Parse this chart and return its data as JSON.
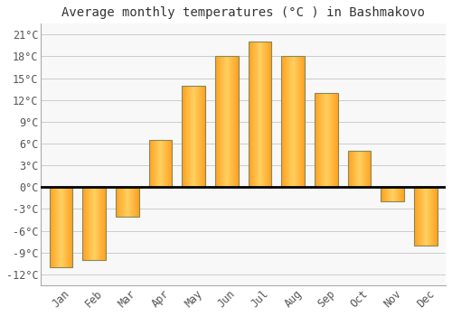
{
  "months": [
    "Jan",
    "Feb",
    "Mar",
    "Apr",
    "May",
    "Jun",
    "Jul",
    "Aug",
    "Sep",
    "Oct",
    "Nov",
    "Dec"
  ],
  "temperatures": [
    -11,
    -10,
    -4,
    6.5,
    14,
    18,
    20,
    18,
    13,
    5,
    -2,
    -8
  ],
  "bar_color_inner": "#FFD060",
  "bar_color_outer": "#FFA020",
  "bar_edge_color": "#888855",
  "title": "Average monthly temperatures (°C ) in Bashmakovo",
  "yticks": [
    -12,
    -9,
    -6,
    -3,
    0,
    3,
    6,
    9,
    12,
    15,
    18,
    21
  ],
  "ylim": [
    -13.5,
    22.5
  ],
  "grid_color": "#cccccc",
  "background_color": "#ffffff",
  "plot_bg_color": "#f8f8f8",
  "zero_line_color": "#000000",
  "title_fontsize": 10,
  "tick_fontsize": 8.5,
  "bar_width": 0.7
}
